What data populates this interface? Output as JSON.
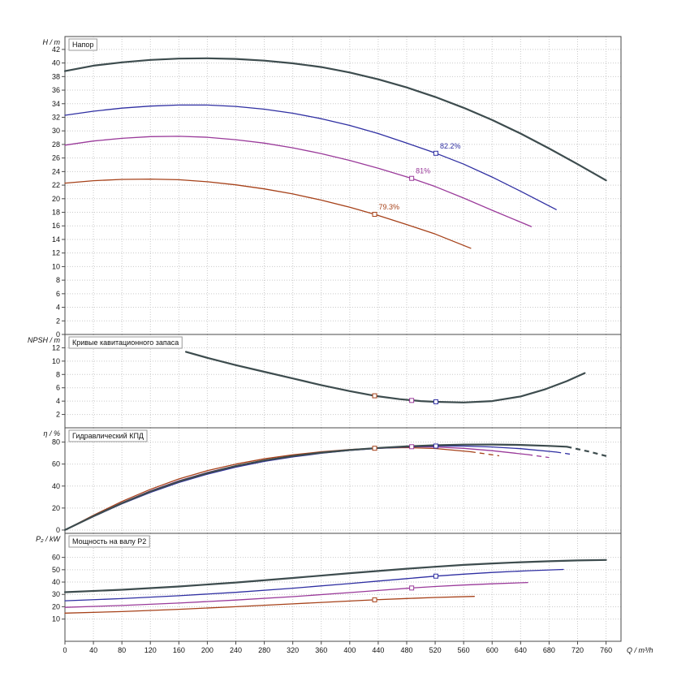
{
  "chart": {
    "background": "#ffffff",
    "grid_color": "#c9c9c9",
    "frame_color": "#4a4a4a",
    "text_color": "#111111",
    "x_axis": {
      "label": "Q / m³/h",
      "min": 0,
      "max": 781,
      "ticks": [
        0,
        40,
        80,
        120,
        160,
        200,
        240,
        280,
        320,
        360,
        400,
        440,
        480,
        520,
        560,
        600,
        640,
        680,
        720,
        760
      ]
    }
  },
  "chart_data": [
    {
      "id": "head",
      "type": "line",
      "title": "Напор",
      "ylabel": "H / m",
      "ylim": [
        0,
        43.9
      ],
      "yticks": [
        0,
        2,
        4,
        6,
        8,
        10,
        12,
        14,
        16,
        18,
        20,
        22,
        24,
        26,
        28,
        30,
        32,
        34,
        36,
        38,
        40,
        42
      ],
      "series": [
        {
          "name": "head-curve-max",
          "color": "#3d4c4e",
          "width": 2.2,
          "points": [
            [
              0,
              38.8
            ],
            [
              40,
              39.6
            ],
            [
              80,
              40.1
            ],
            [
              120,
              40.45
            ],
            [
              160,
              40.65
            ],
            [
              200,
              40.7
            ],
            [
              240,
              40.6
            ],
            [
              280,
              40.35
            ],
            [
              320,
              39.95
            ],
            [
              360,
              39.4
            ],
            [
              400,
              38.6
            ],
            [
              440,
              37.6
            ],
            [
              480,
              36.4
            ],
            [
              520,
              35.0
            ],
            [
              560,
              33.4
            ],
            [
              600,
              31.6
            ],
            [
              640,
              29.6
            ],
            [
              680,
              27.4
            ],
            [
              720,
              25.1
            ],
            [
              760,
              22.7
            ]
          ]
        },
        {
          "name": "head-curve-blue",
          "color": "#2f2fa2",
          "width": 1.3,
          "points": [
            [
              0,
              32.3
            ],
            [
              40,
              32.9
            ],
            [
              80,
              33.35
            ],
            [
              120,
              33.65
            ],
            [
              160,
              33.8
            ],
            [
              200,
              33.8
            ],
            [
              240,
              33.6
            ],
            [
              280,
              33.2
            ],
            [
              320,
              32.6
            ],
            [
              360,
              31.8
            ],
            [
              400,
              30.8
            ],
            [
              440,
              29.6
            ],
            [
              480,
              28.2
            ],
            [
              521,
              26.7
            ],
            [
              560,
              25.1
            ],
            [
              600,
              23.2
            ],
            [
              640,
              21.1
            ],
            [
              690,
              18.4
            ]
          ]
        },
        {
          "name": "head-curve-purple",
          "color": "#9a3a9a",
          "width": 1.3,
          "points": [
            [
              0,
              27.9
            ],
            [
              40,
              28.5
            ],
            [
              80,
              28.9
            ],
            [
              120,
              29.15
            ],
            [
              160,
              29.2
            ],
            [
              200,
              29.05
            ],
            [
              240,
              28.7
            ],
            [
              280,
              28.2
            ],
            [
              320,
              27.5
            ],
            [
              360,
              26.65
            ],
            [
              400,
              25.65
            ],
            [
              440,
              24.5
            ],
            [
              487,
              23.0
            ],
            [
              520,
              21.8
            ],
            [
              560,
              20.1
            ],
            [
              600,
              18.3
            ],
            [
              655,
              15.9
            ]
          ]
        },
        {
          "name": "head-curve-red",
          "color": "#a64119",
          "width": 1.3,
          "points": [
            [
              0,
              22.3
            ],
            [
              40,
              22.65
            ],
            [
              80,
              22.85
            ],
            [
              120,
              22.9
            ],
            [
              160,
              22.8
            ],
            [
              200,
              22.5
            ],
            [
              240,
              22.05
            ],
            [
              280,
              21.45
            ],
            [
              320,
              20.7
            ],
            [
              360,
              19.8
            ],
            [
              400,
              18.75
            ],
            [
              435,
              17.7
            ],
            [
              480,
              16.2
            ],
            [
              520,
              14.8
            ],
            [
              570,
              12.7
            ]
          ]
        }
      ],
      "markers": [
        {
          "x": 521,
          "y": 26.7,
          "color": "#2f2fa2",
          "label": "82.2%"
        },
        {
          "x": 487,
          "y": 23.0,
          "color": "#9a3a9a",
          "label": "81%"
        },
        {
          "x": 435,
          "y": 17.7,
          "color": "#a64119",
          "label": "79.3%"
        }
      ]
    },
    {
      "id": "npsh",
      "type": "line",
      "title": "Кривые кавитационного запаса",
      "ylabel": "NPSH / m",
      "ylim": [
        0,
        14
      ],
      "yticks": [
        2,
        4,
        6,
        8,
        10,
        12
      ],
      "series": [
        {
          "name": "npsh-curve",
          "color": "#3d4c4e",
          "width": 2.2,
          "points": [
            [
              170,
              11.4
            ],
            [
              200,
              10.5
            ],
            [
              240,
              9.4
            ],
            [
              280,
              8.4
            ],
            [
              320,
              7.4
            ],
            [
              360,
              6.4
            ],
            [
              400,
              5.5
            ],
            [
              435,
              4.8
            ],
            [
              470,
              4.3
            ],
            [
              500,
              4.0
            ],
            [
              521,
              3.9
            ],
            [
              560,
              3.8
            ],
            [
              600,
              4.0
            ],
            [
              640,
              4.7
            ],
            [
              675,
              5.8
            ],
            [
              705,
              7.0
            ],
            [
              730,
              8.2
            ]
          ]
        }
      ],
      "markers": [
        {
          "x": 435,
          "y": 4.8,
          "color": "#a64119"
        },
        {
          "x": 487,
          "y": 4.1,
          "color": "#9a3a9a"
        },
        {
          "x": 521,
          "y": 3.9,
          "color": "#2f2fa2"
        }
      ]
    },
    {
      "id": "efficiency",
      "type": "line",
      "title": "Гидравлический КПД",
      "ylabel": "η / %",
      "ylim": [
        -3,
        93
      ],
      "yticks": [
        0,
        20,
        40,
        60,
        80
      ],
      "series": [
        {
          "name": "eff-curve-red",
          "color": "#a64119",
          "width": 1.3,
          "points": [
            [
              0,
              0
            ],
            [
              40,
              13.5
            ],
            [
              80,
              26
            ],
            [
              120,
              37
            ],
            [
              160,
              46.5
            ],
            [
              200,
              54
            ],
            [
              240,
              60
            ],
            [
              280,
              64.8
            ],
            [
              320,
              68.4
            ],
            [
              360,
              71.2
            ],
            [
              400,
              73.2
            ],
            [
              435,
              74.4
            ],
            [
              480,
              75.0
            ],
            [
              520,
              74.2
            ],
            [
              570,
              71.2
            ]
          ],
          "dash": [
            [
              570,
              71.2
            ],
            [
              610,
              67.5
            ]
          ]
        },
        {
          "name": "eff-curve-purple",
          "color": "#9a3a9a",
          "width": 1.3,
          "points": [
            [
              0,
              0
            ],
            [
              40,
              12.8
            ],
            [
              80,
              24.8
            ],
            [
              120,
              35.6
            ],
            [
              160,
              44.8
            ],
            [
              200,
              52.4
            ],
            [
              240,
              58.6
            ],
            [
              280,
              63.5
            ],
            [
              320,
              67.4
            ],
            [
              360,
              70.5
            ],
            [
              400,
              72.9
            ],
            [
              440,
              74.6
            ],
            [
              487,
              75.8
            ],
            [
              520,
              75.6
            ],
            [
              560,
              74.3
            ],
            [
              600,
              72.2
            ],
            [
              650,
              68.6
            ]
          ],
          "dash": [
            [
              650,
              68.6
            ],
            [
              680,
              66.0
            ]
          ]
        },
        {
          "name": "eff-curve-blue",
          "color": "#2f2fa2",
          "width": 1.3,
          "points": [
            [
              0,
              0
            ],
            [
              40,
              12.2
            ],
            [
              80,
              23.8
            ],
            [
              120,
              34.2
            ],
            [
              160,
              43.2
            ],
            [
              200,
              50.8
            ],
            [
              240,
              57.2
            ],
            [
              280,
              62.4
            ],
            [
              320,
              66.5
            ],
            [
              360,
              69.8
            ],
            [
              400,
              72.4
            ],
            [
              440,
              74.3
            ],
            [
              480,
              75.6
            ],
            [
              521,
              76.4
            ],
            [
              560,
              76.4
            ],
            [
              600,
              75.6
            ],
            [
              640,
              74.0
            ],
            [
              690,
              70.9
            ]
          ],
          "dash": [
            [
              690,
              70.9
            ],
            [
              715,
              68.5
            ]
          ]
        },
        {
          "name": "eff-curve-max",
          "color": "#3d4c4e",
          "width": 2.2,
          "points": [
            [
              0,
              0
            ],
            [
              40,
              12.6
            ],
            [
              80,
              24.4
            ],
            [
              120,
              35.0
            ],
            [
              160,
              44.2
            ],
            [
              200,
              51.8
            ],
            [
              240,
              58.2
            ],
            [
              280,
              63.3
            ],
            [
              320,
              67.3
            ],
            [
              360,
              70.4
            ],
            [
              400,
              72.8
            ],
            [
              440,
              74.7
            ],
            [
              480,
              76.1
            ],
            [
              520,
              77.1
            ],
            [
              560,
              77.7
            ],
            [
              600,
              77.8
            ],
            [
              640,
              77.4
            ],
            [
              680,
              76.5
            ],
            [
              705,
              75.8
            ]
          ],
          "dash": [
            [
              705,
              75.8
            ],
            [
              735,
              71.5
            ],
            [
              765,
              66.5
            ]
          ]
        }
      ],
      "markers": [
        {
          "x": 435,
          "y": 74.4,
          "color": "#a64119"
        },
        {
          "x": 487,
          "y": 75.8,
          "color": "#9a3a9a"
        },
        {
          "x": 521,
          "y": 76.4,
          "color": "#2f2fa2"
        }
      ]
    },
    {
      "id": "power",
      "type": "line",
      "title": "Мощность на валу P2",
      "ylabel": "P₂ / kW",
      "ylim": [
        -8,
        79.5
      ],
      "yticks": [
        10,
        20,
        30,
        40,
        50,
        60
      ],
      "series": [
        {
          "name": "power-curve-red",
          "color": "#a64119",
          "width": 1.3,
          "points": [
            [
              0,
              14.8
            ],
            [
              80,
              16.1
            ],
            [
              160,
              17.9
            ],
            [
              240,
              20.0
            ],
            [
              320,
              22.3
            ],
            [
              400,
              24.6
            ],
            [
              435,
              25.6
            ],
            [
              480,
              26.7
            ],
            [
              520,
              27.5
            ],
            [
              575,
              28.4
            ]
          ]
        },
        {
          "name": "power-curve-purple",
          "color": "#9a3a9a",
          "width": 1.3,
          "points": [
            [
              0,
              19.5
            ],
            [
              80,
              21.0
            ],
            [
              160,
              23.0
            ],
            [
              240,
              25.4
            ],
            [
              320,
              28.2
            ],
            [
              400,
              31.5
            ],
            [
              440,
              33.2
            ],
            [
              487,
              35.2
            ],
            [
              520,
              36.4
            ],
            [
              560,
              37.6
            ],
            [
              600,
              38.6
            ],
            [
              650,
              39.6
            ]
          ]
        },
        {
          "name": "power-curve-blue",
          "color": "#2f2fa2",
          "width": 1.3,
          "points": [
            [
              0,
              24.8
            ],
            [
              80,
              26.6
            ],
            [
              160,
              28.9
            ],
            [
              240,
              31.7
            ],
            [
              320,
              35.0
            ],
            [
              400,
              38.8
            ],
            [
              440,
              40.8
            ],
            [
              480,
              42.8
            ],
            [
              521,
              44.8
            ],
            [
              560,
              46.4
            ],
            [
              600,
              47.8
            ],
            [
              650,
              49.2
            ],
            [
              700,
              50.2
            ]
          ]
        },
        {
          "name": "power-curve-max",
          "color": "#3d4c4e",
          "width": 2.2,
          "points": [
            [
              0,
              31.8
            ],
            [
              80,
              33.8
            ],
            [
              160,
              36.4
            ],
            [
              240,
              39.6
            ],
            [
              320,
              43.3
            ],
            [
              400,
              47.2
            ],
            [
              440,
              49.0
            ],
            [
              480,
              50.8
            ],
            [
              520,
              52.4
            ],
            [
              560,
              53.9
            ],
            [
              600,
              55.1
            ],
            [
              640,
              56.1
            ],
            [
              680,
              56.9
            ],
            [
              720,
              57.5
            ],
            [
              760,
              57.9
            ]
          ]
        }
      ],
      "markers": [
        {
          "x": 435,
          "y": 25.6,
          "color": "#a64119"
        },
        {
          "x": 487,
          "y": 35.2,
          "color": "#9a3a9a"
        },
        {
          "x": 521,
          "y": 44.8,
          "color": "#2f2fa2"
        }
      ]
    }
  ]
}
